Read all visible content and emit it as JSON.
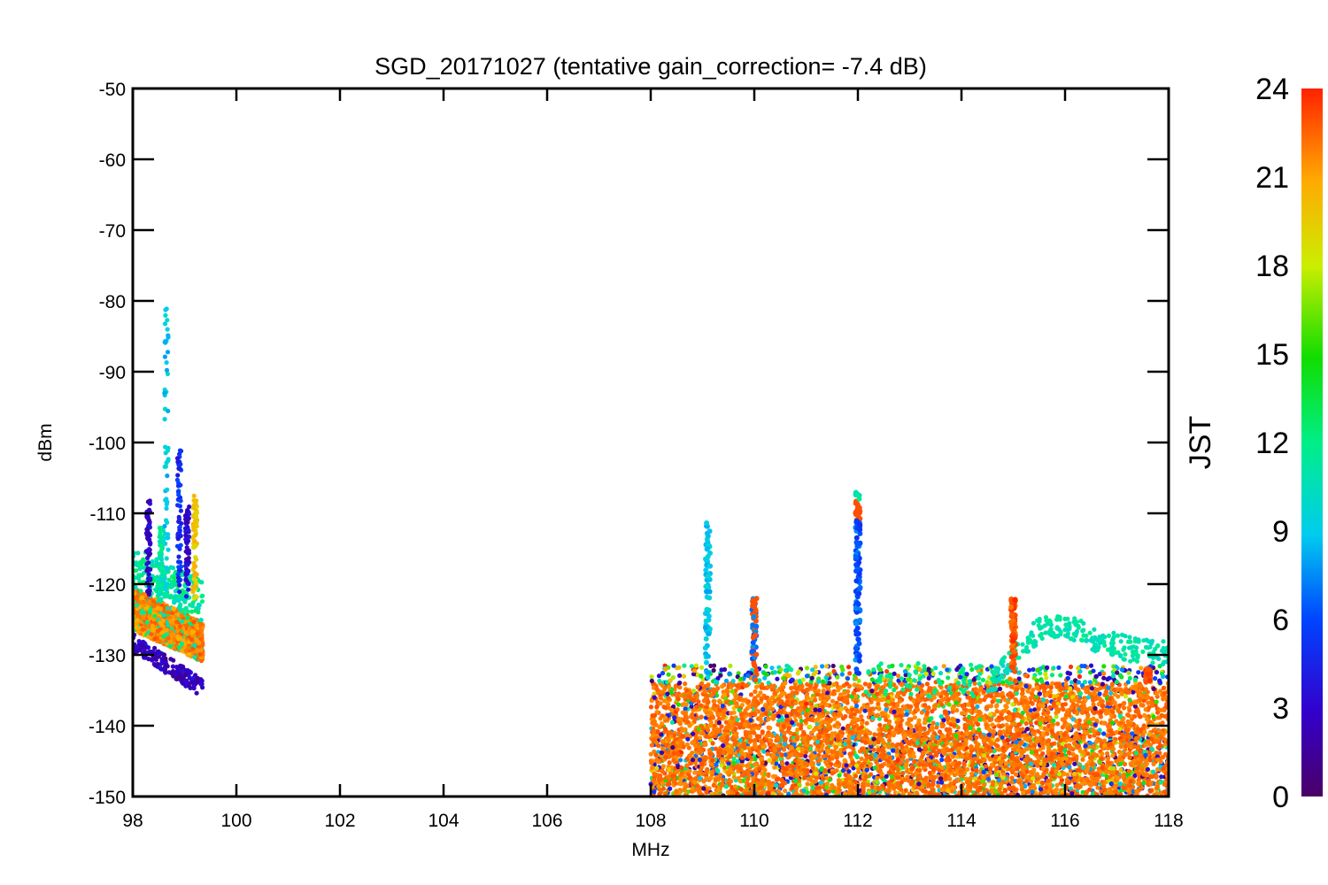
{
  "chart_data": {
    "type": "scatter",
    "title": "SGD_20171027 (tentative gain_correction= -7.4 dB)",
    "xlabel": "MHz",
    "ylabel": "dBm",
    "xlim": [
      98,
      118
    ],
    "ylim": [
      -150,
      -50
    ],
    "x_ticks": [
      98,
      100,
      102,
      104,
      106,
      108,
      110,
      112,
      114,
      116,
      118
    ],
    "y_ticks": [
      -50,
      -60,
      -70,
      -80,
      -90,
      -100,
      -110,
      -120,
      -130,
      -140,
      -150
    ],
    "x_tick_labels": [
      "98",
      "100",
      "102",
      "104",
      "106",
      "108",
      "110",
      "112",
      "114",
      "116",
      "118"
    ],
    "y_tick_labels": [
      "-50",
      "-60",
      "-70",
      "-80",
      "-90",
      "-100",
      "-110",
      "-120",
      "-130",
      "-140",
      "-150"
    ],
    "grid": false,
    "colorbar": {
      "label": "JST",
      "range": [
        0,
        24
      ],
      "ticks": [
        0,
        3,
        6,
        9,
        12,
        15,
        18,
        21,
        24
      ],
      "tick_labels": [
        "0",
        "3",
        "6",
        "9",
        "12",
        "15",
        "18",
        "21",
        "24"
      ],
      "colormap": "rainbow"
    },
    "regions": [
      {
        "x_range": [
          98.0,
          99.35
        ],
        "band_top_start": -120.5,
        "band_top_end": -125.5,
        "band_bottom_start": -126.5,
        "band_bottom_end": -131,
        "dominant_hour": 23,
        "peaks": [
          {
            "x": 98.65,
            "y_top": -81,
            "hour": 9
          },
          {
            "x": 98.9,
            "y_top": -101,
            "hour": 5
          },
          {
            "x": 99.2,
            "y_top": -107.5,
            "hour": 20
          },
          {
            "x": 99.05,
            "y_top": -109,
            "hour": 3
          },
          {
            "x": 98.3,
            "y_top": -108,
            "hour": 3
          },
          {
            "x": 98.55,
            "y_top": -112,
            "hour": 11
          }
        ],
        "lower_trail": {
          "y_start": -127,
          "y_end": -133.5,
          "hour": 1
        }
      },
      {
        "x_range": [
          108.0,
          118.0
        ],
        "band_top": -134,
        "band_bottom": -150,
        "dominant_hour": 23,
        "peaks": [
          {
            "x": 109.1,
            "y_top": -111,
            "hour": 9
          },
          {
            "x": 110.0,
            "y_top": -122,
            "hour": 7
          },
          {
            "x": 112.0,
            "y_top": -107,
            "hour": 6
          },
          {
            "x": 115.0,
            "y_top": -122,
            "hour": 23
          },
          {
            "x": 117.6,
            "y_top": -132,
            "hour": 23
          }
        ],
        "hump": {
          "x_start": 114.5,
          "x_peak": 115.9,
          "x_end": 118.0,
          "y_start": -133,
          "y_peak": -124,
          "y_end": -128,
          "hour": 11
        }
      }
    ]
  }
}
